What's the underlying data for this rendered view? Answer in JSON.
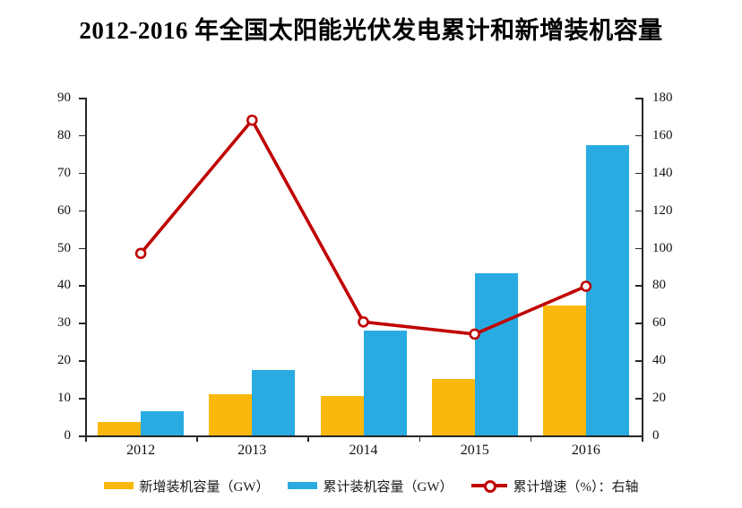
{
  "title": "2012-2016 年全国太阳能光伏发电累计和新增装机容量",
  "colors": {
    "new_installed_bar": "#FBB80C",
    "cumulative_bar": "#29ABE2",
    "growth_line": "#C00000",
    "axis": "#262626",
    "text": "#111111"
  },
  "chart_data": {
    "type": "bar",
    "subtype": "combo-bar-line-dual-axis",
    "title": "2012-2016 年全国太阳能光伏发电累计和新增装机容量",
    "categories": [
      "2012",
      "2013",
      "2014",
      "2015",
      "2016"
    ],
    "series": [
      {
        "name": "新增装机容量（GW）",
        "type": "bar",
        "axis": "left",
        "color": "#FBB80C",
        "values": [
          3.5,
          11,
          10.5,
          15.1,
          34.5
        ]
      },
      {
        "name": "累计装机容量（GW）",
        "type": "bar",
        "axis": "left",
        "color": "#29ABE2",
        "values": [
          6.5,
          17.5,
          28,
          43.2,
          77.4
        ]
      },
      {
        "name": "累计增速（%）：右轴",
        "type": "line",
        "axis": "right",
        "color": "#C00000",
        "marker": "open-circle",
        "values": [
          97,
          168,
          60.5,
          54,
          79.5
        ]
      }
    ],
    "left_axis": {
      "min": 0,
      "max": 90,
      "step": 10,
      "ticks": [
        0,
        10,
        20,
        30,
        40,
        50,
        60,
        70,
        80,
        90
      ]
    },
    "right_axis": {
      "min": 0,
      "max": 180,
      "step": 20,
      "ticks": [
        0,
        20,
        40,
        60,
        80,
        100,
        120,
        140,
        160,
        180
      ]
    },
    "grid": false,
    "legend_position": "bottom",
    "xlabel": "",
    "ylabel": ""
  }
}
